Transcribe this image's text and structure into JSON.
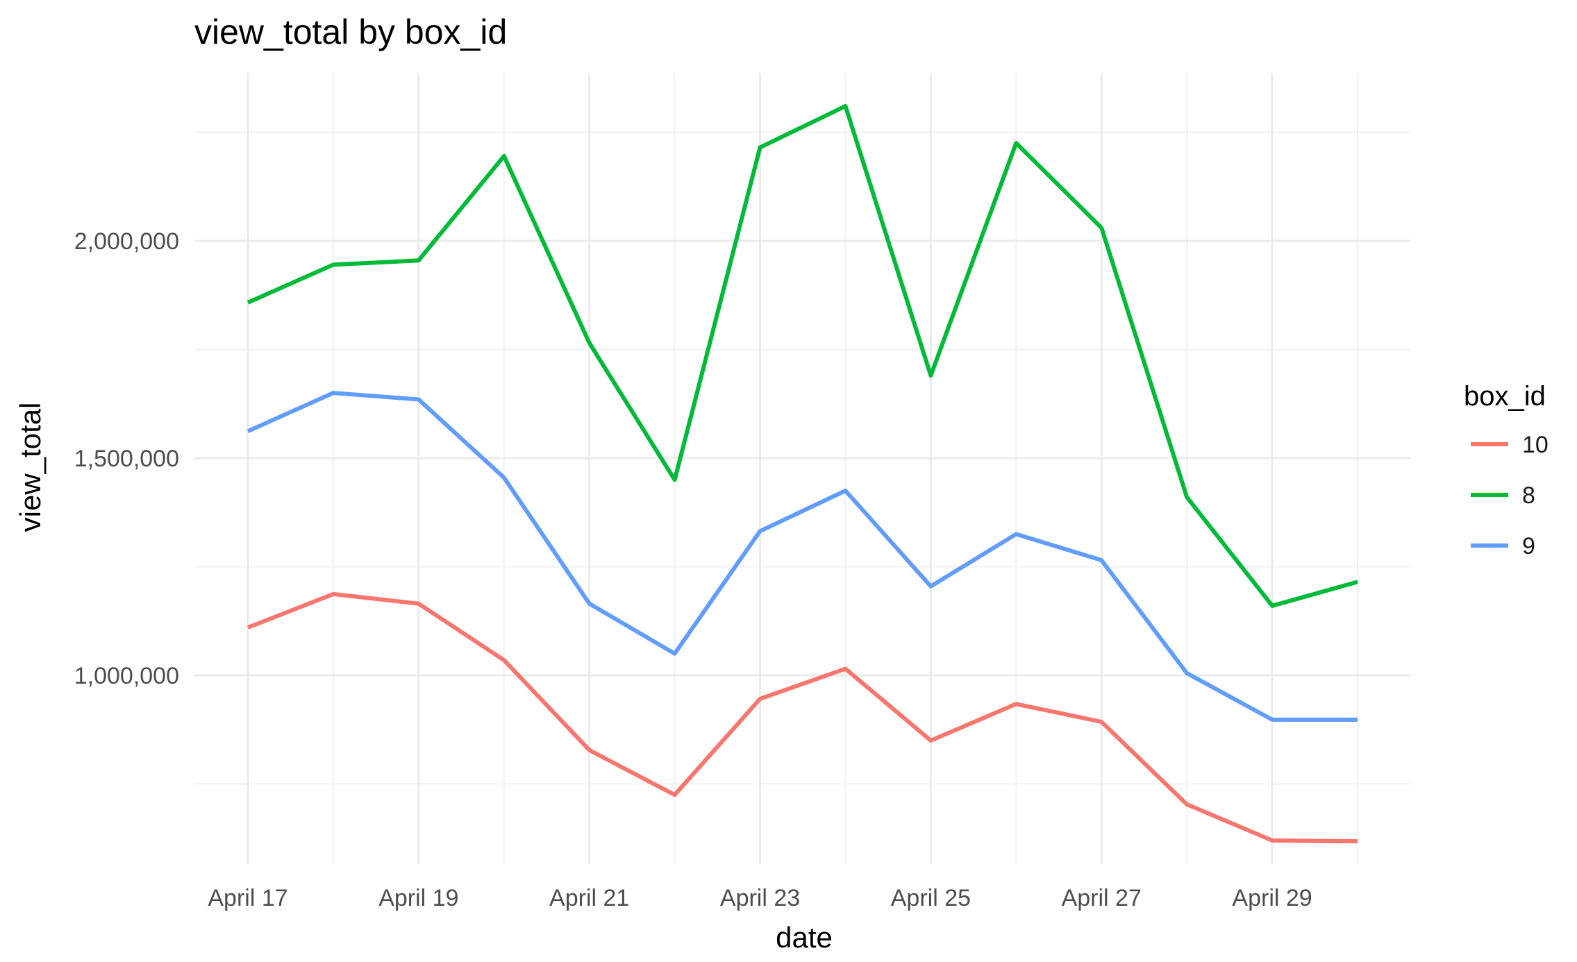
{
  "chart_data": {
    "type": "line",
    "title": "view_total by box_id",
    "xlabel": "date",
    "ylabel": "view_total",
    "x": [
      "April 17",
      "April 18",
      "April 19",
      "April 20",
      "April 21",
      "April 22",
      "April 23",
      "April 24",
      "April 25",
      "April 26",
      "April 27",
      "April 28",
      "April 29",
      "April 30"
    ],
    "x_ticks": [
      "April 17",
      "April 19",
      "April 21",
      "April 23",
      "April 25",
      "April 27",
      "April 29"
    ],
    "y_ticks": [
      1000000,
      1500000,
      2000000
    ],
    "y_tick_labels": [
      "1,000,000",
      "1,500,000",
      "2,000,000"
    ],
    "ylim": [
      580000,
      2360000
    ],
    "grid": true,
    "legend_title": "box_id",
    "legend_position": "right",
    "series": [
      {
        "name": "10",
        "color": "#F8766D",
        "values": [
          1110000,
          1187000,
          1165000,
          1035000,
          828000,
          725000,
          946000,
          1015000,
          850000,
          934000,
          893000,
          703000,
          620000,
          618000
        ]
      },
      {
        "name": "8",
        "color": "#00BA38",
        "values": [
          1858000,
          1945000,
          1955000,
          2195000,
          1765000,
          1450000,
          2215000,
          2310000,
          1690000,
          2225000,
          2030000,
          1410000,
          1160000,
          1215000
        ]
      },
      {
        "name": "9",
        "color": "#619CFF",
        "values": [
          1562000,
          1650000,
          1635000,
          1455000,
          1165000,
          1050000,
          1332000,
          1425000,
          1205000,
          1325000,
          1265000,
          1005000,
          898000,
          898000
        ]
      }
    ]
  }
}
